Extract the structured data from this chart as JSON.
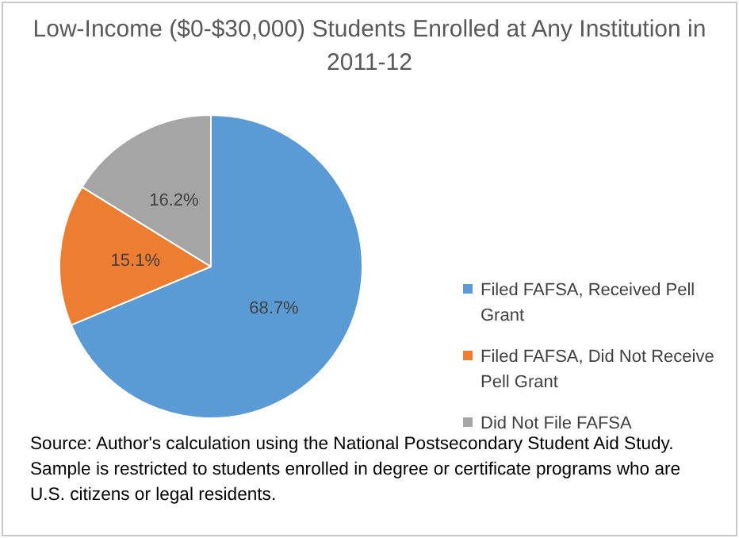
{
  "chart_data": {
    "type": "pie",
    "title": "Low-Income ($0-$30,000) Students Enrolled at Any Institution in 2011-12",
    "categories": [
      "Filed FAFSA, Received Pell Grant",
      "Filed FAFSA, Did Not Receive Pell Grant",
      "Did Not File FAFSA"
    ],
    "values": [
      68.7,
      15.1,
      16.2
    ],
    "colors": [
      "#5b9bd5",
      "#ed7d31",
      "#a5a5a5"
    ],
    "value_labels": [
      "68.7%",
      "15.1%",
      "16.2%"
    ],
    "legend": "right",
    "annotations": [
      "Source: Author's calculation using the National Postsecondary Student Aid Study. Sample is restricted to students enrolled in degree or certificate programs who are U.S. citizens or legal residents."
    ]
  }
}
